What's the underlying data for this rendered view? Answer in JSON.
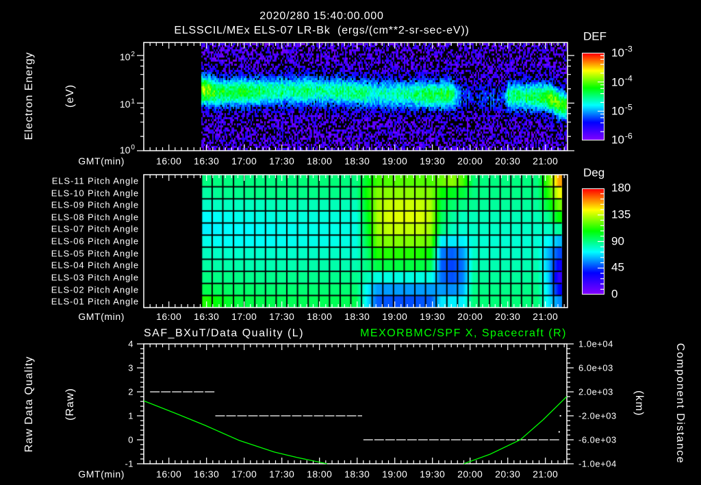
{
  "header": {
    "timestamp": "2020/280 15:40:00.000"
  },
  "chart_data": [
    {
      "type": "heatmap",
      "title": "ELSSCIL/MEx ELS-07 LR-Bk  (ergs/(cm**2-sr-sec-eV))",
      "ylabel": "Electron Energy",
      "yunits": "(eV)",
      "xlabel": "GMT(min)",
      "yscale": "log",
      "ylim": [
        1,
        188
      ],
      "yticks": [
        {
          "base": "10",
          "exp": "2",
          "value": 100
        },
        {
          "base": "10",
          "exp": "1",
          "value": 10
        },
        {
          "base": "10",
          "exp": "0",
          "value": 1
        }
      ],
      "xlim": [
        "15:40",
        "21:17.5"
      ],
      "xticks": [
        "16:00",
        "16:30",
        "17:00",
        "17:30",
        "18:00",
        "18:30",
        "19:00",
        "19:30",
        "20:00",
        "20:30",
        "21:00"
      ],
      "colorbar": {
        "label": "DEF",
        "scale": "log",
        "range_log10": [
          -6,
          -3
        ],
        "ticks": [
          {
            "base": "10",
            "exp": "-3"
          },
          {
            "base": "10",
            "exp": "-4"
          },
          {
            "base": "10",
            "exp": "-5"
          },
          {
            "base": "10",
            "exp": "-6"
          }
        ],
        "colormap": [
          "#8000ff",
          "#0000ff",
          "#00ffff",
          "#00ff00",
          "#ffff00",
          "#ff0000"
        ]
      },
      "data_start": "16:26",
      "data_end": "21:17",
      "background_log10_def": -5.75,
      "band": [
        {
          "t": "16:26",
          "center_eV": 19,
          "peak_log10_def": -3.85
        },
        {
          "t": "16:32",
          "center_eV": 18,
          "peak_log10_def": -3.95
        },
        {
          "t": "16:37",
          "center_eV": 17,
          "peak_log10_def": -4.2
        },
        {
          "t": "16:45",
          "center_eV": 16.5,
          "peak_log10_def": -4.25
        },
        {
          "t": "17:02",
          "center_eV": 17,
          "peak_log10_def": -4.3
        },
        {
          "t": "17:15",
          "center_eV": 17.5,
          "peak_log10_def": -4.4
        },
        {
          "t": "17:24",
          "center_eV": 18,
          "peak_log10_def": -4.5
        },
        {
          "t": "17:51",
          "center_eV": 18,
          "peak_log10_def": -4.5
        },
        {
          "t": "18:18",
          "center_eV": 17.5,
          "peak_log10_def": -4.5
        },
        {
          "t": "18:35",
          "center_eV": 16,
          "peak_log10_def": -4.55
        },
        {
          "t": "18:51",
          "center_eV": 15.5,
          "peak_log10_def": -4.6
        },
        {
          "t": "19:13",
          "center_eV": 15,
          "peak_log10_def": -4.55
        },
        {
          "t": "19:24",
          "center_eV": 15,
          "peak_log10_def": -4.35
        },
        {
          "t": "19:37",
          "center_eV": 15,
          "peak_log10_def": -4.3
        },
        {
          "t": "19:45",
          "center_eV": 15,
          "peak_log10_def": -4.4
        },
        {
          "t": "19:49",
          "center_eV": 14,
          "peak_log10_def": -5.0
        },
        {
          "t": "19:54",
          "center_eV": 14,
          "peak_log10_def": -5.3
        },
        {
          "t": "20:07",
          "center_eV": 13,
          "peak_log10_def": -5.35
        },
        {
          "t": "20:26",
          "center_eV": 13,
          "peak_log10_def": -5.3
        },
        {
          "t": "20:30",
          "center_eV": 14,
          "peak_log10_def": -4.5
        },
        {
          "t": "20:40",
          "center_eV": 14,
          "peak_log10_def": -4.45
        },
        {
          "t": "20:56",
          "center_eV": 13.5,
          "peak_log10_def": -4.3
        },
        {
          "t": "21:05",
          "center_eV": 12.5,
          "peak_log10_def": -4.0
        },
        {
          "t": "21:09",
          "center_eV": 10,
          "peak_log10_def": -4.1
        },
        {
          "t": "21:17",
          "center_eV": 8.5,
          "peak_log10_def": -4.2
        }
      ]
    },
    {
      "type": "heatmap",
      "xlabel": "GMT(min)",
      "xlim": [
        "15:40",
        "21:17.5"
      ],
      "xticks": [
        "16:00",
        "16:30",
        "17:00",
        "17:30",
        "18:00",
        "18:30",
        "19:00",
        "19:30",
        "20:00",
        "20:30",
        "21:00"
      ],
      "rows": [
        "ELS-11 Pitch Angle",
        "ELS-10 Pitch Angle",
        "ELS-09 Pitch Angle",
        "ELS-08 Pitch Angle",
        "ELS-07 Pitch Angle",
        "ELS-06 Pitch Angle",
        "ELS-05 Pitch Angle",
        "ELS-04 Pitch Angle",
        "ELS-03 Pitch Angle",
        "ELS-02 Pitch Angle",
        "ELS-01 Pitch Angle"
      ],
      "colorbar": {
        "label": "Deg",
        "range": [
          0,
          180
        ],
        "ticks": [
          "180",
          "135",
          "90",
          "45",
          "0"
        ],
        "colormap": [
          "#8000ff",
          "#0000ff",
          "#00ffff",
          "#00ff00",
          "#ffff00",
          "#ff0000"
        ]
      },
      "col_start": "16:26",
      "col_width_min": 8.5,
      "data_end": "21:13",
      "values": [
        [
          90,
          90,
          90,
          90,
          90,
          90,
          90,
          90,
          90,
          91,
          91,
          91,
          91,
          90,
          90,
          103,
          117,
          119,
          120,
          120,
          120,
          118,
          122,
          128,
          118,
          92,
          90,
          90,
          90,
          90,
          90,
          90,
          120,
          157
        ],
        [
          85,
          87,
          88,
          88,
          89,
          89,
          89,
          89,
          89,
          89,
          89,
          89,
          89,
          89,
          89,
          110,
          126,
          127,
          128,
          128,
          127,
          126,
          108,
          104,
          100,
          90,
          89,
          89,
          89,
          89,
          89,
          89,
          113,
          142
        ],
        [
          80,
          81,
          81,
          81,
          81,
          81,
          82,
          82,
          82,
          82,
          82,
          82,
          82,
          82,
          81,
          105,
          131,
          136,
          137,
          137,
          136,
          132,
          99,
          93,
          89,
          87,
          86,
          86,
          86,
          86,
          86,
          86,
          102,
          124
        ],
        [
          72,
          73,
          74,
          75,
          75,
          76,
          76,
          77,
          77,
          77,
          77,
          77,
          77,
          77,
          76,
          102,
          133,
          139,
          140,
          140,
          139,
          135,
          95,
          86,
          81,
          82,
          82,
          82,
          82,
          82,
          82,
          82,
          88,
          108
        ],
        [
          70,
          71,
          72,
          72,
          72,
          73,
          73,
          74,
          74,
          75,
          75,
          75,
          75,
          76,
          76,
          100,
          130,
          135,
          136,
          135,
          135,
          130,
          90,
          81,
          78,
          80,
          80,
          80,
          80,
          80,
          80,
          80,
          80,
          86
        ],
        [
          75,
          73,
          73,
          73,
          73,
          73,
          73,
          74,
          74,
          75,
          75,
          75,
          75,
          76,
          76,
          98,
          124,
          126,
          126,
          126,
          125,
          122,
          70,
          69,
          70,
          78,
          78,
          78,
          78,
          78,
          78,
          78,
          72,
          62
        ],
        [
          81,
          80,
          79,
          79,
          79,
          79,
          79,
          79,
          79,
          80,
          80,
          80,
          80,
          79,
          78,
          92,
          112,
          113,
          113,
          113,
          112,
          108,
          54,
          49,
          58,
          80,
          80,
          80,
          80,
          80,
          80,
          80,
          62,
          46
        ],
        [
          85,
          84,
          84,
          84,
          83,
          83,
          83,
          83,
          83,
          84,
          84,
          84,
          84,
          83,
          83,
          90,
          99,
          99,
          99,
          99,
          99,
          97,
          49,
          45,
          52,
          83,
          83,
          83,
          83,
          83,
          83,
          83,
          63,
          33
        ],
        [
          90,
          89,
          89,
          89,
          88,
          88,
          88,
          88,
          88,
          88,
          88,
          88,
          88,
          88,
          88,
          82,
          76,
          76,
          76,
          76,
          76,
          76,
          52,
          47,
          54,
          86,
          86,
          86,
          86,
          86,
          86,
          86,
          66,
          22
        ],
        [
          97,
          95,
          94,
          93,
          93,
          92,
          92,
          92,
          92,
          92,
          92,
          92,
          92,
          92,
          92,
          72,
          58,
          58,
          58,
          58,
          58,
          58,
          58,
          56,
          61,
          89,
          89,
          89,
          89,
          89,
          89,
          89,
          68,
          36
        ],
        [
          112,
          106,
          102,
          99,
          98,
          97,
          97,
          96,
          96,
          96,
          96,
          96,
          96,
          96,
          97,
          70,
          49,
          48,
          47,
          47,
          48,
          49,
          69,
          70,
          70,
          91,
          91,
          91,
          91,
          91,
          91,
          91,
          70,
          56
        ]
      ]
    },
    {
      "type": "line",
      "title_left": "SAF_BXuT/Data Quality (L)",
      "title_right": "MEXORBMC/SPF X, Spacecraft (R)",
      "ylabel_left": "Raw Data Quality",
      "yunits_left": "(Raw)",
      "ylabel_right": "Component Distance",
      "yunits_right": "(km)",
      "xlabel": "GMT(min)",
      "xlim": [
        "15:40",
        "21:17.5"
      ],
      "xticks": [
        "16:00",
        "16:30",
        "17:00",
        "17:30",
        "18:00",
        "18:30",
        "19:00",
        "19:30",
        "20:00",
        "20:30",
        "21:00"
      ],
      "ylim_left": [
        -1,
        4
      ],
      "yticks_left": [
        "4",
        "3",
        "2",
        "1",
        "0",
        "-1"
      ],
      "ylim_right": [
        -10000,
        10000
      ],
      "yticks_right": [
        "1.0e+04",
        "6.0e+03",
        "2.0e+03",
        "-2.0e+03",
        "-6.0e+03",
        "-1.0e+04"
      ],
      "series": [
        {
          "name": "SAF_BXuT/Data Quality",
          "axis": "left",
          "color": "#ffffff",
          "segments": [
            {
              "value": 2,
              "start": "15:45",
              "end": "16:37"
            },
            {
              "value": 1,
              "start": "16:37",
              "end": "18:34"
            },
            {
              "value": 0,
              "start": "18:35",
              "end": "21:11"
            }
          ],
          "points": [
            {
              "t": "21:11",
              "v": 0.33
            },
            {
              "t": "21:12",
              "v": 1
            }
          ]
        },
        {
          "name": "MEXORBMC/SPF X, Spacecraft",
          "axis": "right",
          "color": "#00ff00",
          "segments": [
            [
              {
                "t": "15:40",
                "v": 500
              },
              {
                "t": "16:05",
                "v": -1550
              },
              {
                "t": "16:29",
                "v": -3600
              },
              {
                "t": "16:56",
                "v": -6100
              },
              {
                "t": "17:24",
                "v": -8050
              },
              {
                "t": "17:42",
                "v": -8950
              },
              {
                "t": "18:06",
                "v": -10000
              }
            ],
            [
              {
                "t": "19:55",
                "v": -10000
              },
              {
                "t": "20:16",
                "v": -8400
              },
              {
                "t": "20:40",
                "v": -6000
              },
              {
                "t": "20:58",
                "v": -2700
              },
              {
                "t": "21:17",
                "v": 1200
              }
            ]
          ]
        }
      ]
    }
  ]
}
